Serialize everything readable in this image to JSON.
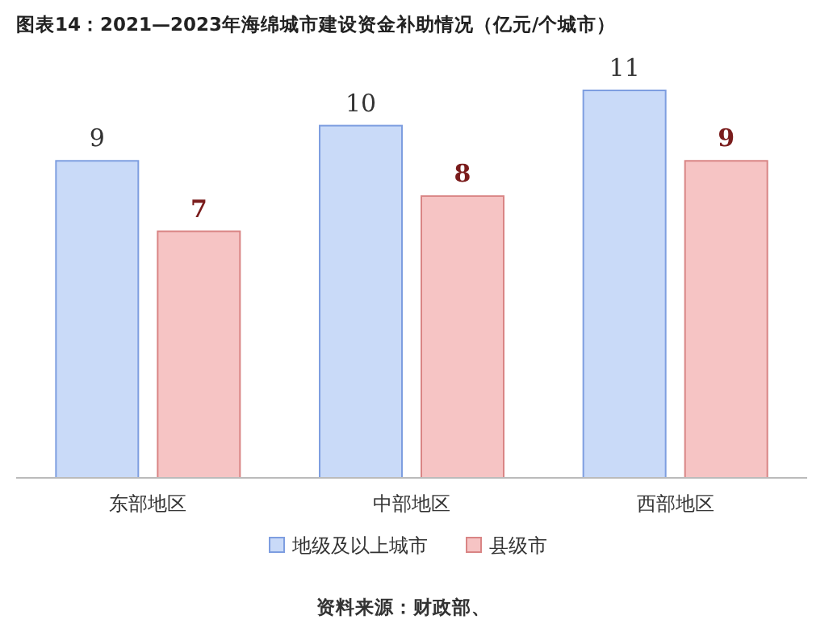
{
  "chart_data": {
    "type": "bar",
    "title": "图表14：2021—2023年海绵城市建设资金补助情况（亿元/个城市）",
    "categories": [
      "东部地区",
      "中部地区",
      "西部地区"
    ],
    "series": [
      {
        "name": "地级及以上城市",
        "color": "#c9daf8",
        "values": [
          9,
          10,
          11
        ]
      },
      {
        "name": "县级市",
        "color": "#f6c4c4",
        "values": [
          7,
          8,
          9
        ]
      }
    ],
    "data_labels": true,
    "legend": "bottom",
    "annotations": [
      "资料来源：财政部、"
    ]
  }
}
